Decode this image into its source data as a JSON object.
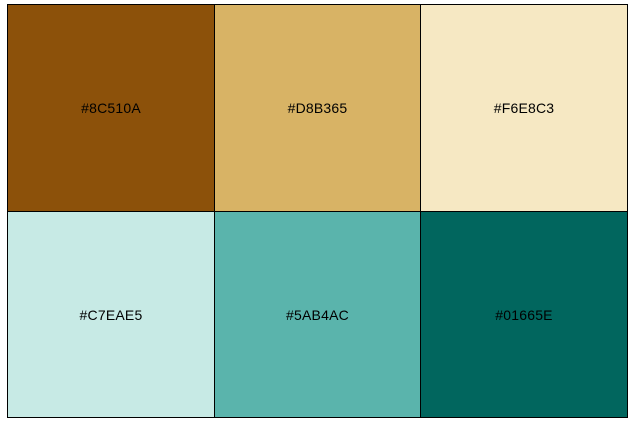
{
  "swatches": [
    {
      "label": "#8C510A",
      "color": "#8C510A"
    },
    {
      "label": "#D8B365",
      "color": "#D8B365"
    },
    {
      "label": "#F6E8C3",
      "color": "#F6E8C3"
    },
    {
      "label": "#C7EAE5",
      "color": "#C7EAE5"
    },
    {
      "label": "#5AB4AC",
      "color": "#5AB4AC"
    },
    {
      "label": "#01665E",
      "color": "#01665E"
    }
  ]
}
